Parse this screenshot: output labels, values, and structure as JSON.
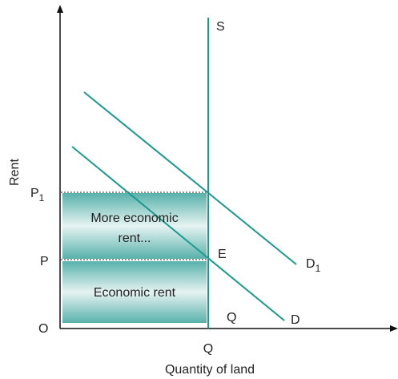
{
  "diagram": {
    "supply_label": "S",
    "y_axis_label": "Rent",
    "p1_label": {
      "text": "P",
      "sub": "1"
    },
    "p_label": "P",
    "origin_label": "O",
    "upper_area_label": [
      "More economic",
      "rent..."
    ],
    "lower_area_label": "Economic rent",
    "equilibrium_label": "E",
    "d1_label": {
      "text": "D",
      "sub": "1"
    },
    "q_inner_label": "Q",
    "d_label": "D",
    "q_axis_label": "Q",
    "x_axis_label": "Quantity of land"
  }
}
